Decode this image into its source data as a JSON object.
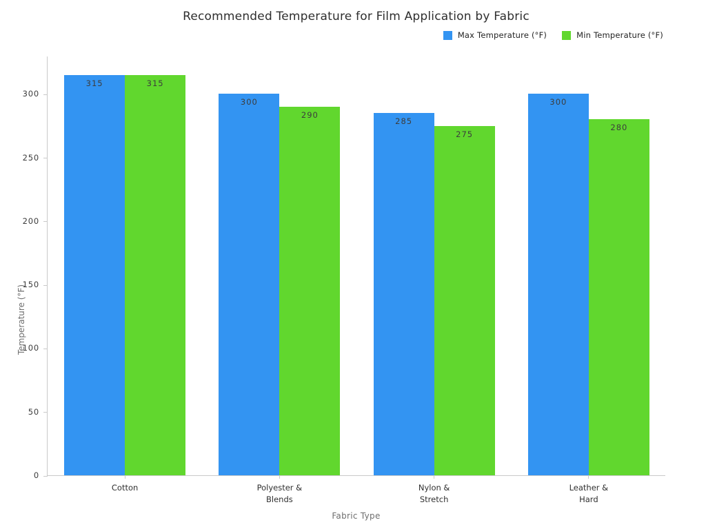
{
  "chart_data": {
    "type": "bar",
    "title": "Recommended Temperature for Film Application by Fabric",
    "xlabel": "Fabric Type",
    "ylabel": "Temperature (°F)",
    "categories": [
      "Cotton",
      "Polyester &\nBlends",
      "Nylon &\nStretch",
      "Leather &\nHard"
    ],
    "series": [
      {
        "name": "Max Temperature (°F)",
        "color": "#3394f2",
        "values": [
          315,
          300,
          285,
          300
        ]
      },
      {
        "name": "Min Temperature (°F)",
        "color": "#61d72e",
        "values": [
          315,
          290,
          275,
          280
        ]
      }
    ],
    "ylim": [
      0,
      330
    ],
    "yticks": [
      0,
      50,
      100,
      150,
      200,
      250,
      300
    ],
    "grid": false,
    "legend_position": "top-right",
    "bar_labels_shown": true,
    "axis_color": "#c9c9c9"
  }
}
